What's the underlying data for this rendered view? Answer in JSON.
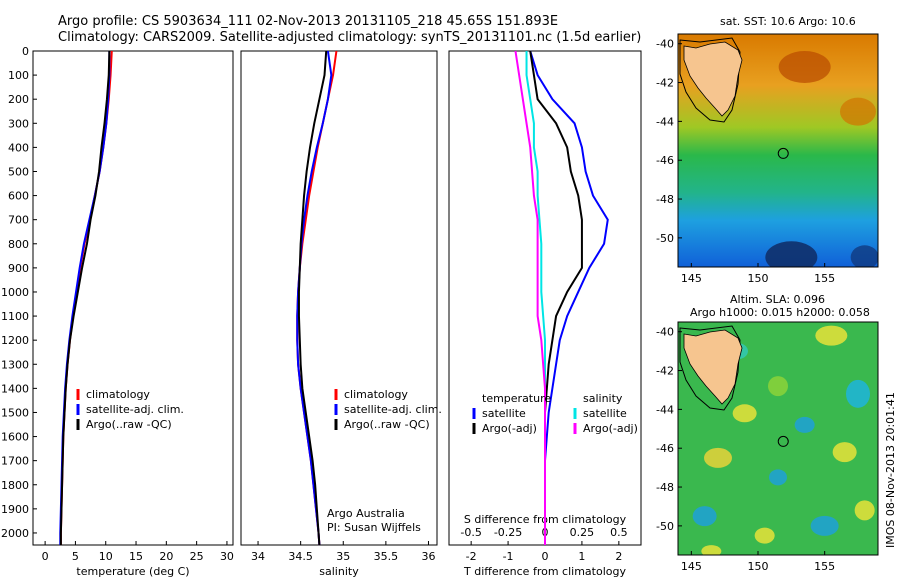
{
  "titles": {
    "line1": "Argo profile: CS 5903634_111 02-Nov-2013 20131105_218 45.65S 151.893E",
    "line2": "Climatology: CARS2009. Satellite-adjusted climatology: synTS_20131101.nc (1.5d earlier)"
  },
  "map_titles": {
    "sst": "sat. SST: 10.6 Argo: 10.6",
    "sla_line1": "Altim. SLA: 0.096",
    "sla_line2": "Argo h1000: 0.015 h2000: 0.058"
  },
  "credit": {
    "line1": "Argo Australia",
    "line2": "PI: Susan Wijffels"
  },
  "watermark": "IMOS 08-Nov-2013 20:01:41",
  "colors": {
    "climatology": "#ff0000",
    "satellite": "#0000ff",
    "argo": "#000000",
    "sal_sat": "#00e5e5",
    "sal_argo": "#ff00ff"
  },
  "chart_data": [
    {
      "type": "line",
      "xlabel": "temperature (deg C)",
      "ylabel": "",
      "xlim": [
        -2,
        31
      ],
      "ylim": [
        2050,
        0
      ],
      "xticks": [
        0,
        5,
        10,
        15,
        20,
        25,
        30
      ],
      "yticks": [
        0,
        100,
        200,
        300,
        400,
        500,
        600,
        700,
        800,
        900,
        1000,
        1100,
        1200,
        1300,
        1400,
        1500,
        1600,
        1700,
        1800,
        1900,
        2000
      ],
      "legend": [
        "climatology",
        "satellite-adj. clim.",
        "Argo(..raw -QC)"
      ],
      "legend_position": "center-left",
      "series": [
        {
          "name": "climatology",
          "color": "#ff0000",
          "depth": [
            0,
            100,
            200,
            300,
            400,
            500,
            600,
            700,
            800,
            900,
            1000,
            1100,
            1200,
            1300,
            1400,
            1500,
            1600,
            1700,
            1800,
            1900,
            2000,
            2050
          ],
          "values": [
            11.0,
            10.8,
            10.5,
            10.1,
            9.6,
            9.0,
            8.2,
            7.4,
            6.5,
            5.8,
            5.2,
            4.6,
            4.1,
            3.7,
            3.4,
            3.2,
            3.0,
            2.9,
            2.8,
            2.7,
            2.6,
            2.6
          ]
        },
        {
          "name": "satellite-adj. clim.",
          "color": "#0000ff",
          "depth": [
            0,
            100,
            200,
            300,
            400,
            500,
            600,
            700,
            800,
            900,
            1000,
            1100,
            1200,
            1300,
            1400,
            1500,
            1600,
            1700,
            1800,
            1900,
            2000,
            2050
          ],
          "values": [
            10.6,
            10.6,
            10.4,
            10.1,
            9.6,
            9.0,
            8.2,
            7.3,
            6.4,
            5.7,
            5.1,
            4.5,
            4.0,
            3.6,
            3.3,
            3.1,
            2.9,
            2.8,
            2.7,
            2.6,
            2.5,
            2.5
          ]
        },
        {
          "name": "Argo(..raw -QC)",
          "color": "#000000",
          "depth": [
            0,
            100,
            200,
            300,
            400,
            500,
            600,
            700,
            800,
            900,
            1000,
            1100,
            1200,
            1300,
            1400,
            1500,
            1600,
            1700,
            1800,
            1900,
            2000,
            2050
          ],
          "values": [
            10.6,
            10.5,
            10.2,
            9.8,
            9.3,
            8.9,
            8.3,
            7.5,
            6.9,
            6.1,
            5.4,
            4.7,
            4.1,
            3.7,
            3.4,
            3.2,
            3.0,
            2.9,
            2.8,
            2.7,
            2.6,
            2.6
          ]
        }
      ]
    },
    {
      "type": "line",
      "xlabel": "salinity",
      "ylabel": "",
      "xlim": [
        33.8,
        36.1
      ],
      "ylim": [
        2050,
        0
      ],
      "xticks": [
        34,
        34.5,
        35,
        35.5,
        36
      ],
      "legend": [
        "climatology",
        "satellite-adj. clim.",
        "Argo(..raw -QC)"
      ],
      "legend_position": "center-right",
      "series": [
        {
          "name": "climatology",
          "color": "#ff0000",
          "depth": [
            0,
            100,
            200,
            300,
            400,
            500,
            600,
            700,
            800,
            900,
            1000,
            1100,
            1200,
            1300,
            1400,
            1500,
            1600,
            1700,
            1800,
            1900,
            2000,
            2050
          ],
          "values": [
            34.92,
            34.88,
            34.82,
            34.76,
            34.7,
            34.65,
            34.6,
            34.56,
            34.52,
            34.49,
            34.47,
            34.46,
            34.46,
            34.47,
            34.5,
            34.54,
            34.58,
            34.62,
            34.65,
            34.68,
            34.71,
            34.72
          ]
        },
        {
          "name": "satellite-adj. clim.",
          "color": "#0000ff",
          "depth": [
            0,
            100,
            200,
            300,
            400,
            500,
            600,
            700,
            800,
            900,
            1000,
            1100,
            1200,
            1300,
            1400,
            1500,
            1600,
            1700,
            1800,
            1900,
            2000,
            2050
          ],
          "values": [
            34.82,
            34.86,
            34.82,
            34.76,
            34.69,
            34.63,
            34.58,
            34.54,
            34.51,
            34.49,
            34.47,
            34.46,
            34.46,
            34.47,
            34.5,
            34.54,
            34.58,
            34.62,
            34.65,
            34.68,
            34.71,
            34.72
          ]
        },
        {
          "name": "Argo(..raw -QC)",
          "color": "#000000",
          "depth": [
            0,
            100,
            200,
            300,
            400,
            500,
            600,
            700,
            800,
            900,
            1000,
            1100,
            1200,
            1300,
            1400,
            1500,
            1600,
            1700,
            1800,
            1900,
            2000,
            2050
          ],
          "values": [
            34.8,
            34.78,
            34.72,
            34.66,
            34.61,
            34.57,
            34.54,
            34.52,
            34.5,
            34.49,
            34.48,
            34.48,
            34.49,
            34.5,
            34.52,
            34.56,
            34.6,
            34.64,
            34.67,
            34.69,
            34.71,
            34.72
          ]
        }
      ]
    },
    {
      "type": "line",
      "xlabel": "T difference from climatology",
      "xlabel_top": "S difference from climatology",
      "ylabel": "",
      "xlim": [
        -2.6,
        2.6
      ],
      "xticks": [
        -2,
        -1,
        0,
        1,
        2
      ],
      "xticks_s": [
        -0.5,
        -0.25,
        0,
        0.25,
        0.5
      ],
      "ylim": [
        2050,
        0
      ],
      "legend": [
        "temperature",
        "satellite",
        "Argo(-adj)",
        "salinity",
        "satellite",
        "Argo(-adj)"
      ],
      "legend_position": "center",
      "series": [
        {
          "name": "satellite",
          "color": "#0000ff",
          "depth": [
            0,
            100,
            200,
            300,
            400,
            500,
            600,
            700,
            800,
            900,
            1000,
            1100,
            1200,
            1300,
            1400,
            1500,
            1600,
            1700,
            1800,
            1900,
            2000,
            2050
          ],
          "values": [
            -0.4,
            -0.2,
            0.2,
            0.8,
            1.0,
            1.1,
            1.3,
            1.7,
            1.6,
            1.2,
            0.9,
            0.6,
            0.4,
            0.3,
            0.2,
            0.1,
            0.05,
            0.0,
            0.0,
            0.0,
            0.0,
            0.0
          ]
        },
        {
          "name": "Argo(-adj)",
          "color": "#000000",
          "depth": [
            0,
            100,
            200,
            300,
            400,
            500,
            600,
            700,
            800,
            900,
            1000,
            1100,
            1200,
            1300,
            1400,
            1500,
            1600,
            1700,
            1800,
            1900,
            2000,
            2050
          ],
          "values": [
            -0.4,
            -0.3,
            -0.2,
            0.3,
            0.6,
            0.7,
            0.9,
            1.0,
            1.0,
            1.0,
            0.6,
            0.3,
            0.2,
            0.1,
            0.05,
            0.0,
            0.0,
            0.0,
            0.0,
            0.0,
            0.0,
            0.0
          ]
        },
        {
          "name": "satellite",
          "color": "#00e5e5",
          "depth": [
            0,
            100,
            200,
            300,
            400,
            500,
            600,
            700,
            800,
            900,
            1000,
            1100,
            1200,
            1300,
            1400,
            1500,
            1600,
            1700,
            1800,
            1900,
            2000,
            2050
          ],
          "values": [
            -0.5,
            -0.5,
            -0.4,
            -0.3,
            -0.3,
            -0.2,
            -0.2,
            -0.15,
            -0.1,
            -0.1,
            -0.1,
            -0.05,
            0.0,
            0.0,
            0.0,
            0.0,
            0.0,
            0.0,
            0.0,
            0.0,
            0.0,
            0.0
          ]
        },
        {
          "name": "Argo(-adj)",
          "color": "#ff00ff",
          "depth": [
            0,
            100,
            200,
            300,
            400,
            500,
            600,
            700,
            800,
            900,
            1000,
            1100,
            1200,
            1300,
            1400,
            1500,
            1600,
            1700,
            1800,
            1900,
            2000,
            2050
          ],
          "values": [
            -0.8,
            -0.7,
            -0.6,
            -0.5,
            -0.4,
            -0.35,
            -0.3,
            -0.2,
            -0.2,
            -0.2,
            -0.2,
            -0.2,
            -0.1,
            -0.05,
            0.0,
            0.0,
            0.0,
            0.0,
            0.0,
            0.0,
            0.0,
            0.0
          ]
        }
      ]
    },
    {
      "type": "heatmap",
      "title": "sat. SST: 10.6 Argo: 10.6",
      "xticks": [
        145,
        150,
        155
      ],
      "yticks": [
        -40,
        -42,
        -44,
        -46,
        -48,
        -50
      ],
      "xlim": [
        144,
        159
      ],
      "ylim": [
        -51.5,
        -39.5
      ],
      "marker": {
        "lon": 151.893,
        "lat": -45.65
      }
    },
    {
      "type": "heatmap",
      "title": "Altim. SLA: 0.096",
      "subtitle": "Argo h1000: 0.015 h2000: 0.058",
      "xticks": [
        145,
        150,
        155
      ],
      "yticks": [
        -40,
        -42,
        -44,
        -46,
        -48,
        -50
      ],
      "xlim": [
        144,
        159
      ],
      "ylim": [
        -51.5,
        -39.5
      ],
      "marker": {
        "lon": 151.893,
        "lat": -45.65
      }
    }
  ]
}
